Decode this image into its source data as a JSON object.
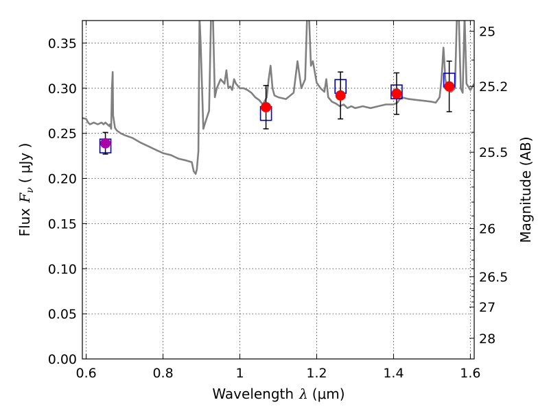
{
  "chart_data": {
    "type": "scatter",
    "xlabel": "Wavelength",
    "xlabel_symbol": "λ",
    "xlabel_unit": "(μm)",
    "ylabel": "Flux",
    "ylabel_symbol": "F",
    "ylabel_sub": "ν",
    "ylabel_unit": "(  μJy )",
    "y2label": "Magnitude (AB)",
    "xlim": [
      0.59,
      1.61
    ],
    "ylim": [
      0.0,
      0.375
    ],
    "grid": true,
    "x_ticks": [
      {
        "value": 0.6,
        "label": "0.6"
      },
      {
        "value": 0.8,
        "label": "0.8"
      },
      {
        "value": 1.0,
        "label": "1"
      },
      {
        "value": 1.2,
        "label": "1.2"
      },
      {
        "value": 1.4,
        "label": "1.4"
      },
      {
        "value": 1.6,
        "label": "1.6"
      }
    ],
    "y_ticks": [
      {
        "value": 0.0,
        "label": "0.00"
      },
      {
        "value": 0.05,
        "label": "0.05"
      },
      {
        "value": 0.1,
        "label": "0.10"
      },
      {
        "value": 0.15,
        "label": "0.15"
      },
      {
        "value": 0.2,
        "label": "0.20"
      },
      {
        "value": 0.25,
        "label": "0.25"
      },
      {
        "value": 0.3,
        "label": "0.30"
      },
      {
        "value": 0.35,
        "label": "0.35"
      }
    ],
    "y2_ticks": [
      {
        "value": 25,
        "label": "25"
      },
      {
        "value": 25.2,
        "label": "25.2"
      },
      {
        "value": 25.5,
        "label": "25.5"
      },
      {
        "value": 26,
        "label": "26"
      },
      {
        "value": 26.5,
        "label": "26.5"
      },
      {
        "value": 27,
        "label": "27"
      },
      {
        "value": 28,
        "label": "28"
      }
    ],
    "y2_minor_ticks": [
      25.1,
      25.3,
      25.4,
      25.6,
      25.7,
      25.8,
      25.9,
      26.1,
      26.2,
      26.3,
      26.4,
      26.6,
      26.7,
      26.8,
      26.9
    ],
    "observed_points": {
      "color": "#ff0000",
      "points": [
        {
          "x": 0.65,
          "y": 0.239,
          "yerr": 0.012,
          "color": "#aa00aa"
        },
        {
          "x": 1.068,
          "y": 0.279,
          "yerr": 0.024
        },
        {
          "x": 1.262,
          "y": 0.292,
          "yerr": 0.026
        },
        {
          "x": 1.408,
          "y": 0.294,
          "yerr": 0.023
        },
        {
          "x": 1.545,
          "y": 0.302,
          "yerr": 0.028
        }
      ]
    },
    "model_points": {
      "color": "#0000cc",
      "points": [
        {
          "x": 0.65,
          "y": 0.236
        },
        {
          "x": 1.068,
          "y": 0.272
        },
        {
          "x": 1.262,
          "y": 0.302
        },
        {
          "x": 1.408,
          "y": 0.296
        },
        {
          "x": 1.545,
          "y": 0.309
        }
      ]
    },
    "model_spectrum": {
      "color": "#808080",
      "x": [
        0.59,
        0.6,
        0.605,
        0.61,
        0.62,
        0.63,
        0.64,
        0.645,
        0.65,
        0.66,
        0.662,
        0.665,
        0.667,
        0.669,
        0.67,
        0.675,
        0.68,
        0.69,
        0.7,
        0.72,
        0.74,
        0.76,
        0.78,
        0.8,
        0.82,
        0.84,
        0.86,
        0.875,
        0.88,
        0.885,
        0.888,
        0.892,
        0.895,
        0.898,
        0.905,
        0.91,
        0.92,
        0.925,
        0.93,
        0.935,
        0.94,
        0.95,
        0.96,
        0.965,
        0.97,
        0.975,
        0.98,
        0.985,
        0.99,
        1.0,
        1.01,
        1.02,
        1.03,
        1.04,
        1.05,
        1.06,
        1.07,
        1.075,
        1.08,
        1.085,
        1.09,
        1.1,
        1.12,
        1.14,
        1.15,
        1.16,
        1.17,
        1.175,
        1.18,
        1.185,
        1.19,
        1.2,
        1.21,
        1.22,
        1.225,
        1.23,
        1.24,
        1.25,
        1.26,
        1.27,
        1.28,
        1.29,
        1.3,
        1.32,
        1.34,
        1.36,
        1.38,
        1.4,
        1.41,
        1.42,
        1.44,
        1.46,
        1.48,
        1.5,
        1.51,
        1.52,
        1.525,
        1.53,
        1.535,
        1.54,
        1.55,
        1.56,
        1.565,
        1.57,
        1.575,
        1.58,
        1.585,
        1.59,
        1.6,
        1.61
      ],
      "y": [
        0.267,
        0.266,
        0.262,
        0.26,
        0.262,
        0.26,
        0.262,
        0.26,
        0.262,
        0.258,
        0.26,
        0.255,
        0.3,
        0.318,
        0.27,
        0.256,
        0.253,
        0.25,
        0.248,
        0.245,
        0.24,
        0.236,
        0.232,
        0.228,
        0.226,
        0.222,
        0.22,
        0.218,
        0.208,
        0.205,
        0.21,
        0.23,
        0.38,
        0.35,
        0.255,
        0.262,
        0.275,
        0.38,
        0.38,
        0.29,
        0.3,
        0.31,
        0.305,
        0.32,
        0.3,
        0.302,
        0.298,
        0.31,
        0.305,
        0.3,
        0.3,
        0.298,
        0.295,
        0.29,
        0.287,
        0.282,
        0.29,
        0.31,
        0.325,
        0.3,
        0.292,
        0.29,
        0.288,
        0.295,
        0.33,
        0.3,
        0.31,
        0.38,
        0.38,
        0.325,
        0.33,
        0.306,
        0.3,
        0.296,
        0.31,
        0.29,
        0.285,
        0.283,
        0.28,
        0.282,
        0.278,
        0.28,
        0.278,
        0.28,
        0.278,
        0.28,
        0.282,
        0.282,
        0.284,
        0.29,
        0.288,
        0.287,
        0.286,
        0.285,
        0.284,
        0.29,
        0.31,
        0.345,
        0.31,
        0.298,
        0.296,
        0.3,
        0.38,
        0.38,
        0.3,
        0.295,
        0.38,
        0.305,
        0.298,
        0.305
      ]
    }
  }
}
